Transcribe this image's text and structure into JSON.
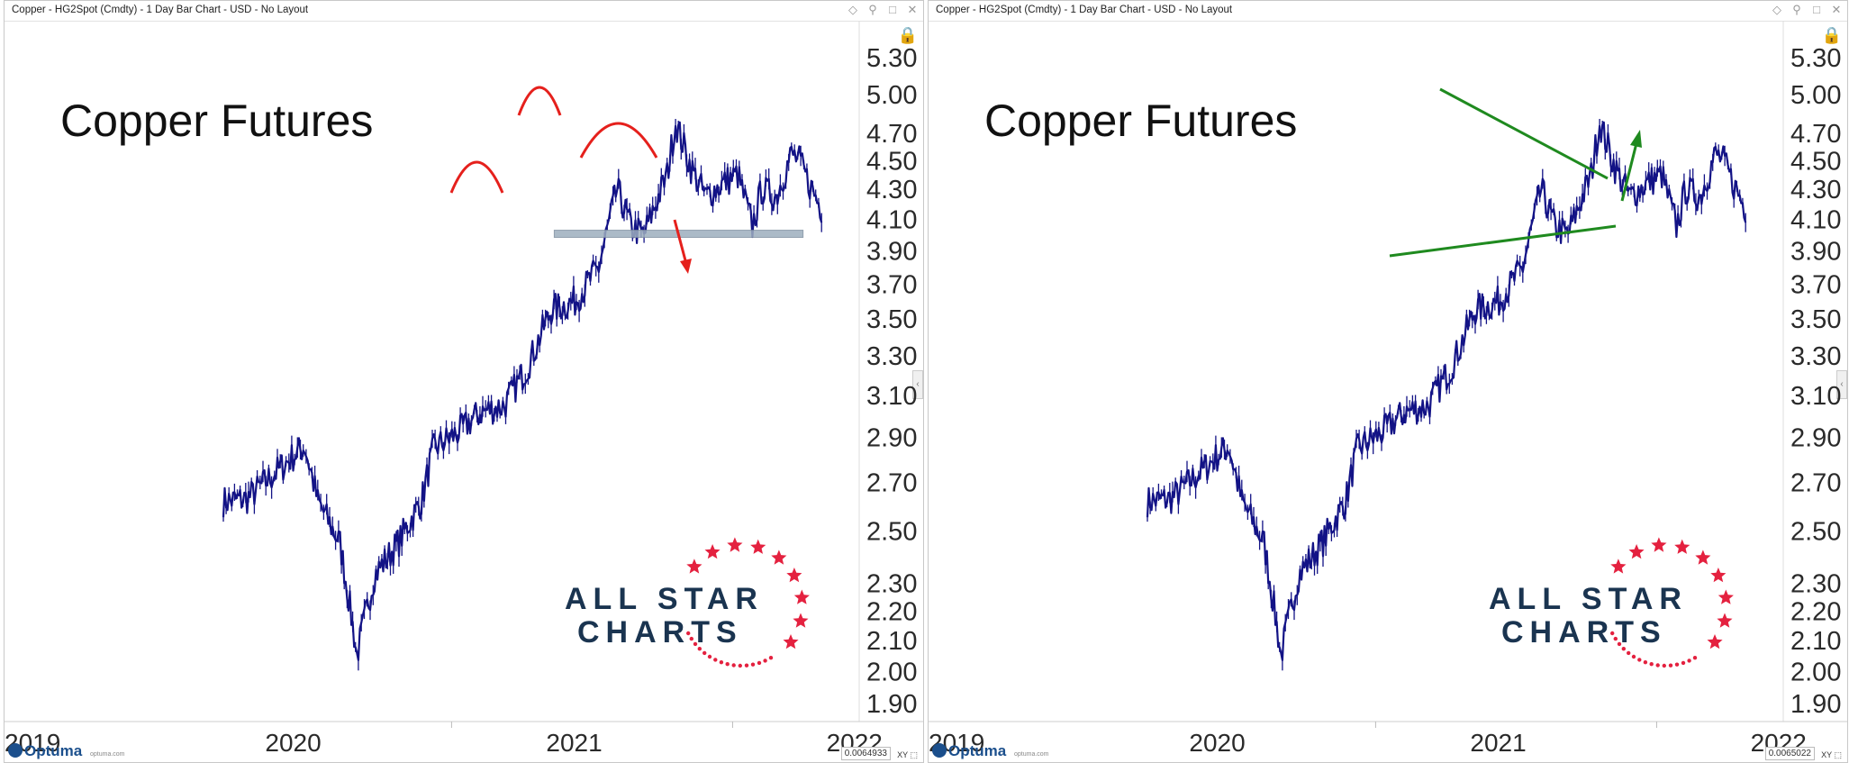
{
  "colors": {
    "price": "#131386",
    "pattern_red": "#e5201c",
    "pattern_green": "#1f8a1f",
    "support": "#9daebe",
    "brand_text": "#1a3450",
    "brand_star": "#e4213f"
  },
  "panels": [
    {
      "window_title": "Copper - HG2Spot (Cmdty) - 1 Day Bar Chart - USD - No Layout",
      "readout": "0.0064933",
      "xy_label": "XY",
      "annotation": "head-and-shoulders"
    },
    {
      "window_title": "Copper - HG2Spot (Cmdty) - 1 Day Bar Chart - USD - No Layout",
      "readout": "0.0065022",
      "xy_label": "XY",
      "annotation": "triangle"
    }
  ],
  "branding": {
    "line1": "ALL STAR",
    "line2": "CHARTS"
  },
  "footer": {
    "optuma_logo": "Optuma",
    "optuma_url": "optuma.com"
  },
  "chart_data": {
    "type": "bar",
    "title": "Copper Futures",
    "xlabel": "",
    "ylabel": "",
    "scale": "log",
    "ylim": [
      1.86,
      5.4
    ],
    "y_ticks": [
      "5.30",
      "5.00",
      "4.70",
      "4.50",
      "4.30",
      "4.10",
      "3.90",
      "3.70",
      "3.50",
      "3.30",
      "3.10",
      "2.90",
      "2.70",
      "2.50",
      "2.30",
      "2.20",
      "2.10",
      "2.00",
      "1.90"
    ],
    "x_ticks": [
      "2019",
      "2020",
      "2021",
      "2022"
    ],
    "grid": false,
    "series": [
      {
        "values_x": [
          "2019-10-01",
          "2019-11-01",
          "2019-12-01",
          "2020-01-15",
          "2020-02-01",
          "2020-03-01",
          "2020-03-23",
          "2020-04-15",
          "2020-05-15",
          "2020-06-15",
          "2020-07-01",
          "2020-08-01",
          "2020-09-01",
          "2020-10-01",
          "2020-11-01",
          "2020-12-01",
          "2021-01-01",
          "2021-02-01",
          "2021-02-25",
          "2021-03-15",
          "2021-04-01",
          "2021-05-01",
          "2021-05-12",
          "2021-06-01",
          "2021-06-20",
          "2021-07-15",
          "2021-08-01",
          "2021-08-20",
          "2021-09-01",
          "2021-09-20",
          "2021-10-10",
          "2021-10-20",
          "2021-11-01",
          "2021-11-20"
        ],
        "values_y": [
          2.62,
          2.63,
          2.72,
          2.86,
          2.62,
          2.45,
          2.05,
          2.33,
          2.45,
          2.62,
          2.85,
          2.92,
          3.02,
          3.05,
          3.25,
          3.55,
          3.6,
          3.8,
          4.3,
          4.05,
          4.0,
          4.4,
          4.78,
          4.45,
          4.25,
          4.35,
          4.4,
          4.05,
          4.3,
          4.25,
          4.55,
          4.5,
          4.35,
          4.15
        ]
      }
    ]
  }
}
